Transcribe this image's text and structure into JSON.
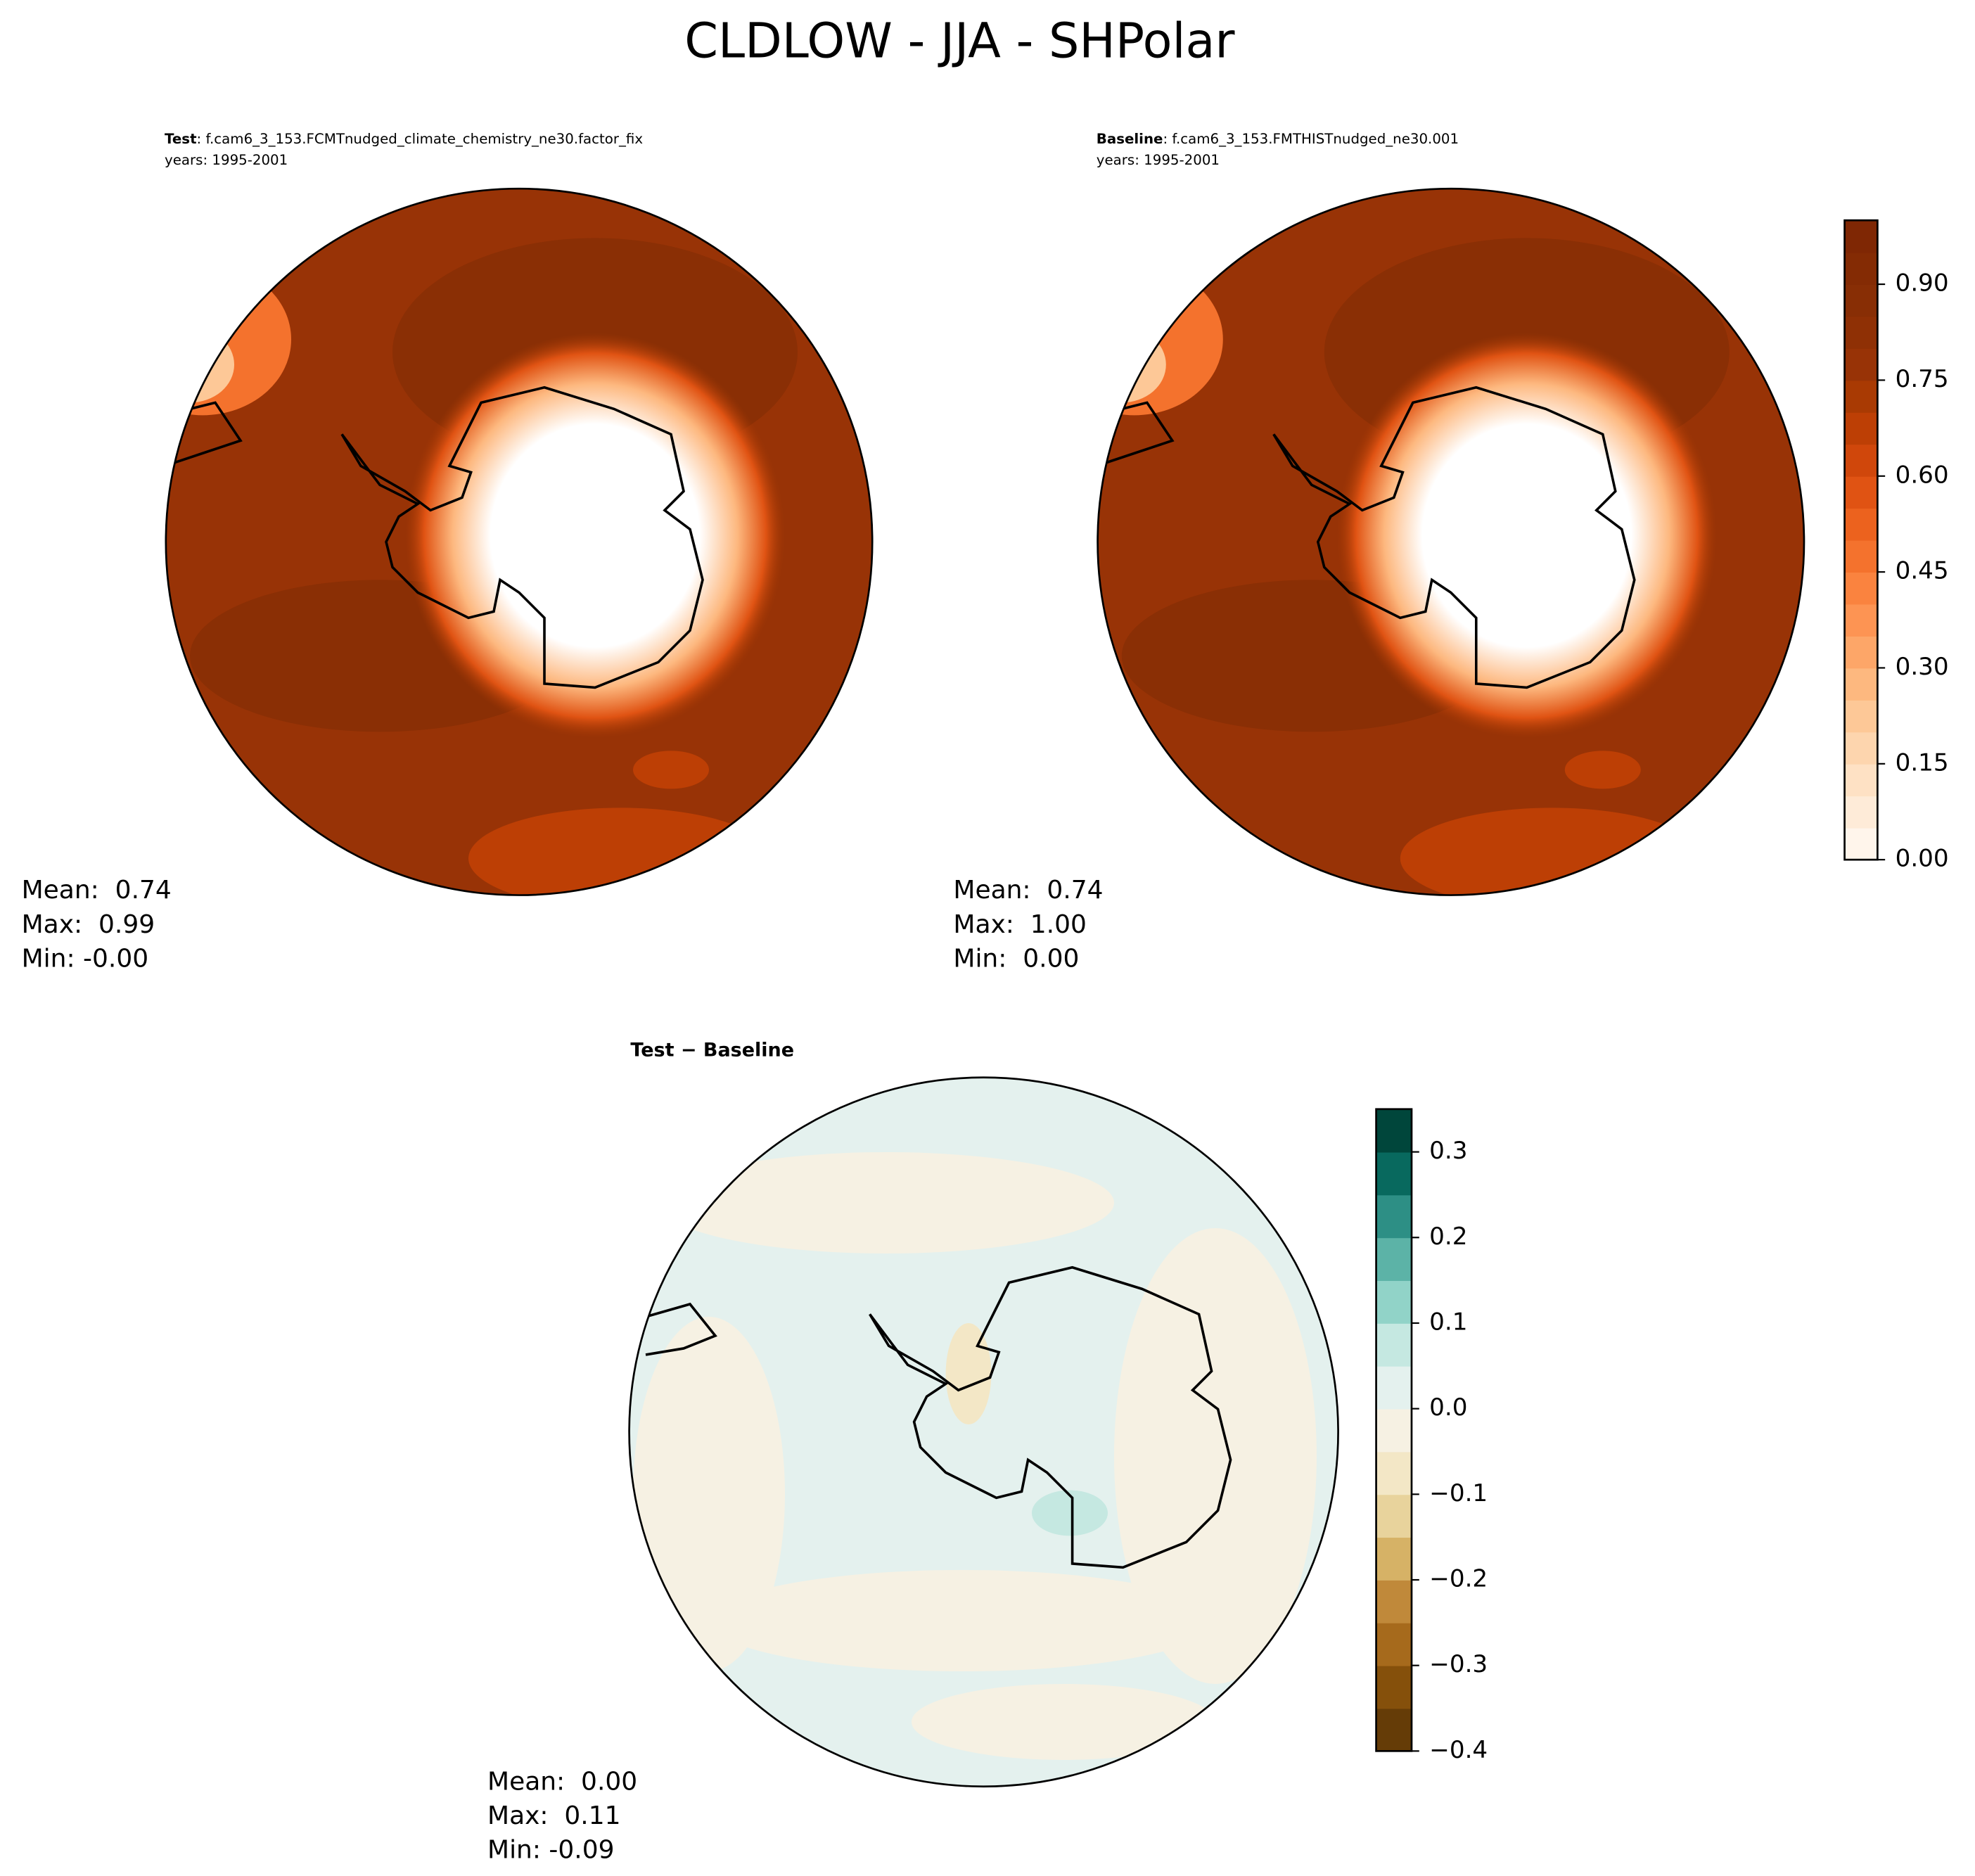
{
  "title": "CLDLOW - JJA - SHPolar",
  "panels": [
    {
      "title_bold": "Test",
      "title_rest": ": f.cam6_3_153.FCMTnudged_climate_chemistry_ne30.factor_fix",
      "years": "years: 1995-2001",
      "stats": [
        "Mean:  0.74",
        "Max:  0.99",
        "Min: -0.00"
      ]
    },
    {
      "title_bold": "Baseline",
      "title_rest": ": f.cam6_3_153.FMTHISTnudged_ne30.001",
      "years": "years: 1995-2001",
      "stats": [
        "Mean:  0.74",
        "Max:  1.00",
        "Min:  0.00"
      ]
    },
    {
      "title_bold": "Test − Baseline",
      "stats": [
        "Mean:  0.00",
        "Max:  0.11",
        "Min: -0.09"
      ]
    }
  ],
  "colorbars": [
    {
      "lim": [
        0,
        1
      ],
      "ticks": [
        {
          "value": 0,
          "label": "0.00"
        },
        {
          "value": 0.15,
          "label": "0.15"
        },
        {
          "value": 0.3,
          "label": "0.30"
        },
        {
          "value": 0.45,
          "label": "0.45"
        },
        {
          "value": 0.6,
          "label": "0.60"
        },
        {
          "value": 0.75,
          "label": "0.75"
        },
        {
          "value": 0.9,
          "label": "0.90"
        }
      ],
      "colors": [
        "#fff5eb",
        "#feebd8",
        "#fee1c4",
        "#fdd5ae",
        "#fdc897",
        "#fdb87f",
        "#fda668",
        "#fd9453",
        "#fa833f",
        "#f4722d",
        "#ec621e",
        "#e05313",
        "#d0470b",
        "#bd3f05",
        "#a93a03",
        "#983306",
        "#8f3005",
        "#882e05",
        "#842b04",
        "#7f2704"
      ]
    },
    {
      "lim": [
        -0.4,
        0.35
      ],
      "ticks": [
        {
          "value": -0.4,
          "label": "−0.4"
        },
        {
          "value": -0.3,
          "label": "−0.3"
        },
        {
          "value": -0.2,
          "label": "−0.2"
        },
        {
          "value": -0.1,
          "label": "−0.1"
        },
        {
          "value": 0,
          "label": "0.0"
        },
        0.1,
        0.2,
        0.3
      ],
      "colors": [
        "#653c07",
        "#85500b",
        "#a66a1c",
        "#c0893a",
        "#d6b266",
        "#e8d39c",
        "#f3e7c6",
        "#f6f1e3",
        "#e4f1ee",
        "#c5e8e1",
        "#91d3c8",
        "#5cb3a7",
        "#2d8f85",
        "#08695e",
        "#00463b"
      ]
    }
  ]
}
